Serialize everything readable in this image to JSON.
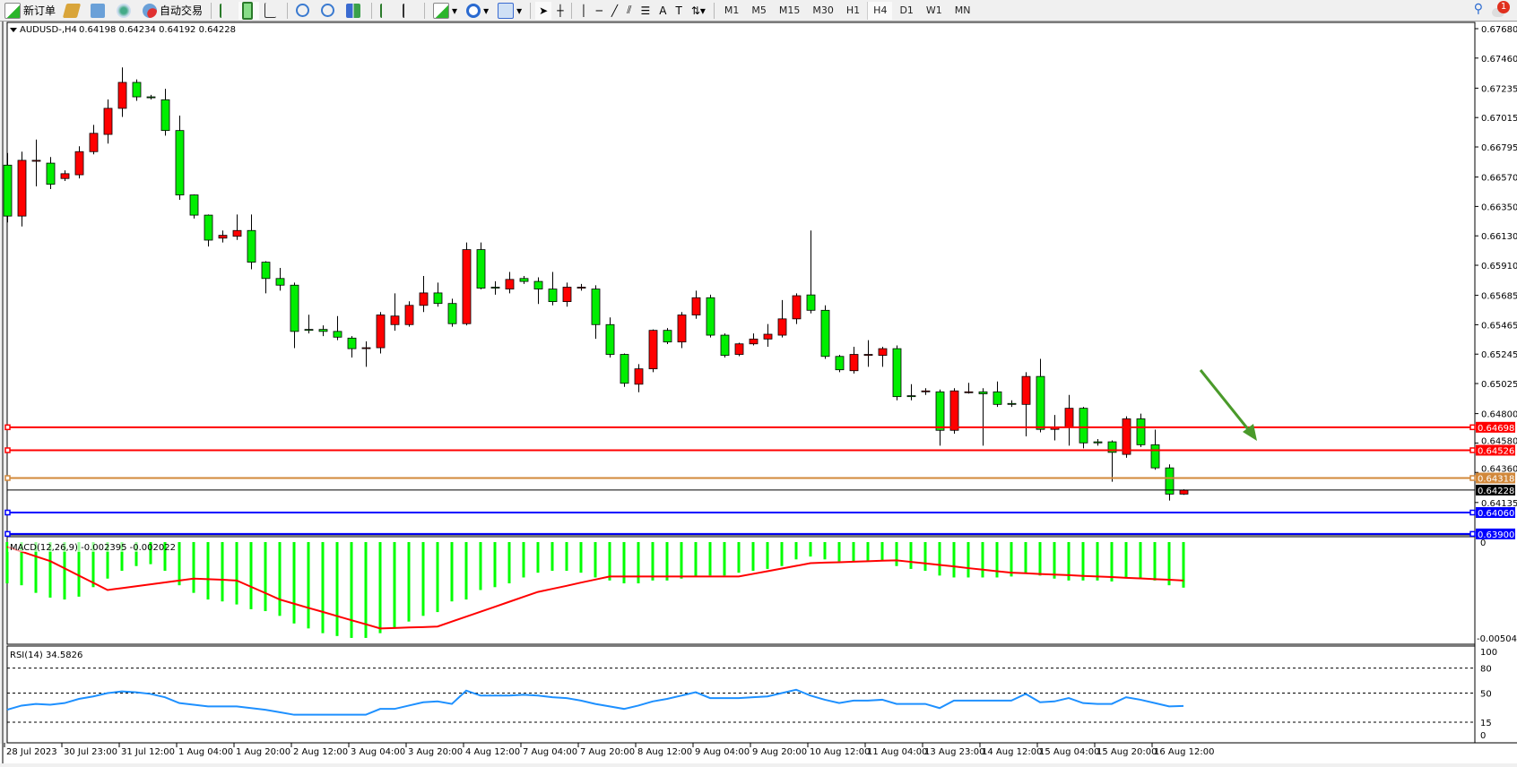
{
  "toolbar": {
    "new_order_label": "新订单",
    "auto_trading_label": "自动交易",
    "timeframes": [
      "M1",
      "M5",
      "M15",
      "M30",
      "H1",
      "H4",
      "D1",
      "W1",
      "MN"
    ],
    "active_timeframe": "H4",
    "notification_count": "1"
  },
  "chart_header": {
    "symbol_label": "AUDUSD-,H4",
    "ohlc_text": "0.64198 0.64234 0.64192 0.64228"
  },
  "colors": {
    "bull": "#ff0000",
    "bear": "#00ee00",
    "macd_hist": "#00ff00",
    "macd_signal": "#ff0000",
    "rsi": "#1e90ff",
    "arrow": "#4a9a2a"
  },
  "chart_data": [
    {
      "type": "candlestick",
      "title": "AUDUSD-,H4",
      "ylim": [
        0.6385,
        0.677
      ],
      "y_ticks": [
        "0.67680",
        "0.67460",
        "0.67235",
        "0.67015",
        "0.66795",
        "0.66570",
        "0.66350",
        "0.66130",
        "0.65910",
        "0.65685",
        "0.65465",
        "0.65245",
        "0.65025",
        "0.64800",
        "0.64580",
        "0.64360",
        "0.64135"
      ],
      "x_tick_labels": [
        "28 Jul 2023",
        "30 Jul 23:00",
        "31 Jul 12:00",
        "1 Aug 04:00",
        "1 Aug 20:00",
        "2 Aug 12:00",
        "3 Aug 04:00",
        "3 Aug 20:00",
        "4 Aug 12:00",
        "7 Aug 04:00",
        "7 Aug 20:00",
        "8 Aug 12:00",
        "9 Aug 04:00",
        "9 Aug 20:00",
        "10 Aug 12:00",
        "11 Aug 04:00",
        "13 Aug 23:00",
        "14 Aug 12:00",
        "15 Aug 04:00",
        "15 Aug 20:00",
        "16 Aug 12:00"
      ],
      "x_tick_every_bars": 4,
      "ohlc": [
        [
          0.66659,
          0.6675,
          0.6623,
          0.66278
        ],
        [
          0.66278,
          0.6676,
          0.662,
          0.66695
        ],
        [
          0.66688,
          0.6685,
          0.665,
          0.66695
        ],
        [
          0.66674,
          0.6672,
          0.6648,
          0.66516
        ],
        [
          0.66559,
          0.6662,
          0.6654,
          0.66595
        ],
        [
          0.66587,
          0.668,
          0.6656,
          0.6676
        ],
        [
          0.6676,
          0.6696,
          0.6674,
          0.66897
        ],
        [
          0.66889,
          0.6715,
          0.6682,
          0.67084
        ],
        [
          0.67084,
          0.6739,
          0.6702,
          0.67278
        ],
        [
          0.67278,
          0.673,
          0.6714,
          0.6717
        ],
        [
          0.6717,
          0.67185,
          0.6715,
          0.67163
        ],
        [
          0.67148,
          0.6723,
          0.6688,
          0.66918
        ],
        [
          0.66918,
          0.6703,
          0.664,
          0.66436
        ],
        [
          0.66436,
          0.6644,
          0.6626,
          0.66285
        ],
        [
          0.66285,
          0.6629,
          0.6605,
          0.66098
        ],
        [
          0.66113,
          0.6617,
          0.6608,
          0.66134
        ],
        [
          0.66127,
          0.6629,
          0.661,
          0.6617
        ],
        [
          0.6617,
          0.6629,
          0.6588,
          0.65933
        ],
        [
          0.65933,
          0.6594,
          0.657,
          0.65811
        ],
        [
          0.65811,
          0.6589,
          0.6572,
          0.65761
        ],
        [
          0.65761,
          0.6578,
          0.6529,
          0.65415
        ],
        [
          0.6543,
          0.6554,
          0.654,
          0.65423
        ],
        [
          0.6543,
          0.6546,
          0.6538,
          0.65415
        ],
        [
          0.65415,
          0.6553,
          0.6535,
          0.65372
        ],
        [
          0.65365,
          0.6538,
          0.6522,
          0.65286
        ],
        [
          0.65293,
          0.6534,
          0.6515,
          0.65293
        ],
        [
          0.65293,
          0.6556,
          0.6525,
          0.65538
        ],
        [
          0.65466,
          0.657,
          0.6542,
          0.6553
        ],
        [
          0.65466,
          0.6564,
          0.6545,
          0.6561
        ],
        [
          0.6561,
          0.6583,
          0.6556,
          0.65703
        ],
        [
          0.65703,
          0.6578,
          0.656,
          0.65624
        ],
        [
          0.65624,
          0.6566,
          0.6545,
          0.65473
        ],
        [
          0.65473,
          0.6608,
          0.6546,
          0.66027
        ],
        [
          0.66027,
          0.6608,
          0.6573,
          0.65739
        ],
        [
          0.65746,
          0.6579,
          0.6569,
          0.65739
        ],
        [
          0.65732,
          0.6586,
          0.657,
          0.65804
        ],
        [
          0.65811,
          0.6583,
          0.6577,
          0.65789
        ],
        [
          0.65789,
          0.6582,
          0.6562,
          0.65732
        ],
        [
          0.65732,
          0.6586,
          0.6561,
          0.65638
        ],
        [
          0.65638,
          0.6578,
          0.656,
          0.65746
        ],
        [
          0.65739,
          0.6577,
          0.6572,
          0.65746
        ],
        [
          0.65732,
          0.6576,
          0.6536,
          0.65466
        ],
        [
          0.65466,
          0.6552,
          0.6522,
          0.65243
        ],
        [
          0.65243,
          0.6525,
          0.65,
          0.65027
        ],
        [
          0.6502,
          0.6517,
          0.6496,
          0.65135
        ],
        [
          0.65135,
          0.6543,
          0.6511,
          0.65423
        ],
        [
          0.65423,
          0.6544,
          0.6532,
          0.65336
        ],
        [
          0.65336,
          0.6556,
          0.6529,
          0.65538
        ],
        [
          0.65538,
          0.6572,
          0.6551,
          0.65667
        ],
        [
          0.65667,
          0.6569,
          0.6537,
          0.65387
        ],
        [
          0.65387,
          0.654,
          0.6522,
          0.65236
        ],
        [
          0.65243,
          0.6533,
          0.6523,
          0.65322
        ],
        [
          0.65322,
          0.654,
          0.6531,
          0.65358
        ],
        [
          0.65358,
          0.6547,
          0.653,
          0.65394
        ],
        [
          0.65387,
          0.6565,
          0.6537,
          0.65509
        ],
        [
          0.65509,
          0.657,
          0.6547,
          0.65682
        ],
        [
          0.65688,
          0.6617,
          0.6555,
          0.65573
        ],
        [
          0.65573,
          0.6561,
          0.6521,
          0.65228
        ],
        [
          0.65228,
          0.6524,
          0.6511,
          0.65128
        ],
        [
          0.65121,
          0.653,
          0.651,
          0.65243
        ],
        [
          0.65236,
          0.6535,
          0.6515,
          0.65243
        ],
        [
          0.65236,
          0.653,
          0.6515,
          0.65286
        ],
        [
          0.65286,
          0.6531,
          0.649,
          0.64927
        ],
        [
          0.64934,
          0.6502,
          0.649,
          0.64927
        ],
        [
          0.64963,
          0.6499,
          0.6494,
          0.6497
        ],
        [
          0.64963,
          0.6498,
          0.6456,
          0.64675
        ],
        [
          0.64675,
          0.6499,
          0.6465,
          0.6497
        ],
        [
          0.64963,
          0.6503,
          0.6495,
          0.64963
        ],
        [
          0.64963,
          0.6499,
          0.6456,
          0.64948
        ],
        [
          0.64963,
          0.6504,
          0.6485,
          0.64869
        ],
        [
          0.64876,
          0.649,
          0.6485,
          0.64869
        ],
        [
          0.64869,
          0.6511,
          0.6463,
          0.65078
        ],
        [
          0.65078,
          0.6521,
          0.6466,
          0.64682
        ],
        [
          0.64682,
          0.6479,
          0.646,
          0.64696
        ],
        [
          0.64696,
          0.6494,
          0.6456,
          0.6484
        ],
        [
          0.6484,
          0.6485,
          0.6454,
          0.64581
        ],
        [
          0.64589,
          0.6461,
          0.6456,
          0.64581
        ],
        [
          0.64589,
          0.646,
          0.6429,
          0.6451
        ],
        [
          0.64495,
          0.6478,
          0.6447,
          0.64761
        ],
        [
          0.64761,
          0.648,
          0.6455,
          0.64567
        ],
        [
          0.64567,
          0.6468,
          0.6438,
          0.64394
        ],
        [
          0.64394,
          0.6442,
          0.6415,
          0.64198
        ],
        [
          0.64198,
          0.64234,
          0.64192,
          0.64228
        ]
      ],
      "horizontal_lines": [
        {
          "price": "0.64698",
          "color": "#ff0000"
        },
        {
          "price": "0.64526",
          "color": "#ff0000"
        },
        {
          "price": "0.64318",
          "color": "#d2883a"
        },
        {
          "price": "0.64228",
          "color": "#000000"
        },
        {
          "price": "0.64060",
          "color": "#0000ff"
        },
        {
          "price": "0.63900",
          "color": "#0000ff"
        }
      ],
      "annotation": {
        "type": "arrow",
        "direction": "down-right",
        "color": "#4a9a2a"
      }
    },
    {
      "type": "bar+line",
      "label": "MACD(12,26,9) -0.002395 -0.002022",
      "ylim": [
        -0.005043,
        0
      ],
      "y_ticks": [
        "0",
        "-0.005043"
      ],
      "histogram": [
        -0.00217,
        -0.00227,
        -0.00267,
        -0.00292,
        -0.00302,
        -0.00287,
        -0.00237,
        -0.00192,
        -0.00151,
        -0.00126,
        -0.00116,
        -0.00151,
        -0.00227,
        -0.00267,
        -0.00302,
        -0.00312,
        -0.00328,
        -0.00353,
        -0.00363,
        -0.00388,
        -0.00428,
        -0.00454,
        -0.00479,
        -0.00494,
        -0.00504,
        -0.00504,
        -0.00479,
        -0.00454,
        -0.00418,
        -0.00388,
        -0.00368,
        -0.00312,
        -0.00302,
        -0.00252,
        -0.00237,
        -0.00217,
        -0.00186,
        -0.00161,
        -0.00151,
        -0.00151,
        -0.00161,
        -0.00186,
        -0.00202,
        -0.00217,
        -0.00217,
        -0.00202,
        -0.00202,
        -0.00192,
        -0.00181,
        -0.00176,
        -0.00176,
        -0.00161,
        -0.00151,
        -0.00141,
        -0.00126,
        -0.00091,
        -0.00076,
        -0.00091,
        -0.00101,
        -0.00101,
        -0.00101,
        -0.00101,
        -0.00126,
        -0.00141,
        -0.00151,
        -0.00176,
        -0.00186,
        -0.00186,
        -0.00186,
        -0.00186,
        -0.00181,
        -0.00166,
        -0.00176,
        -0.00192,
        -0.00202,
        -0.00202,
        -0.00202,
        -0.00207,
        -0.00186,
        -0.00192,
        -0.00202,
        -0.00227,
        -0.002395
      ],
      "signal": [
        -0.00025,
        -0.0005,
        -0.00075,
        -0.001,
        -0.00138,
        -0.00176,
        -0.00214,
        -0.00252,
        -0.00242,
        -0.00232,
        -0.00222,
        -0.00212,
        -0.00202,
        -0.00192,
        -0.00195,
        -0.00198,
        -0.00202,
        -0.00235,
        -0.00268,
        -0.00302,
        -0.00324,
        -0.00346,
        -0.00367,
        -0.00389,
        -0.00411,
        -0.00432,
        -0.00454,
        -0.00452,
        -0.00449,
        -0.00447,
        -0.00444,
        -0.00418,
        -0.00392,
        -0.00366,
        -0.0034,
        -0.00314,
        -0.00288,
        -0.00262,
        -0.00246,
        -0.0023,
        -0.00213,
        -0.00197,
        -0.00181,
        -0.00181,
        -0.00181,
        -0.00181,
        -0.00181,
        -0.00181,
        -0.00181,
        -0.00181,
        -0.00181,
        -0.00181,
        -0.00167,
        -0.00153,
        -0.00139,
        -0.00125,
        -0.00111,
        -0.00108,
        -0.00106,
        -0.00103,
        -0.00101,
        -0.00098,
        -0.00096,
        -0.00104,
        -0.00112,
        -0.0012,
        -0.00128,
        -0.00137,
        -0.00145,
        -0.00153,
        -0.00161,
        -0.00164,
        -0.00168,
        -0.00171,
        -0.00174,
        -0.00178,
        -0.00181,
        -0.00184,
        -0.00188,
        -0.00191,
        -0.00195,
        -0.00198,
        -0.002022
      ]
    },
    {
      "type": "line",
      "label": "RSI(14) 34.5826",
      "ylim": [
        0,
        100
      ],
      "y_ticks": [
        "100",
        "80",
        "50",
        "15",
        "0"
      ],
      "levels": [
        80,
        50,
        15
      ],
      "values": [
        30,
        35,
        37,
        36,
        38,
        43,
        46,
        50,
        52,
        51,
        49,
        45,
        38,
        36,
        34,
        34,
        34,
        32,
        30,
        27,
        24,
        24,
        24,
        24,
        24,
        24,
        31,
        31,
        35,
        39,
        40,
        37,
        53,
        47,
        47,
        47,
        48,
        47,
        45,
        44,
        41,
        37,
        34,
        31,
        35,
        40,
        43,
        47,
        51,
        44,
        44,
        44,
        45,
        46,
        50,
        54,
        47,
        42,
        38,
        41,
        41,
        42,
        37,
        37,
        37,
        32,
        41,
        41,
        41,
        41,
        41,
        49,
        39,
        40,
        44,
        38,
        37,
        37,
        45,
        42,
        38,
        34,
        34.58
      ]
    }
  ]
}
